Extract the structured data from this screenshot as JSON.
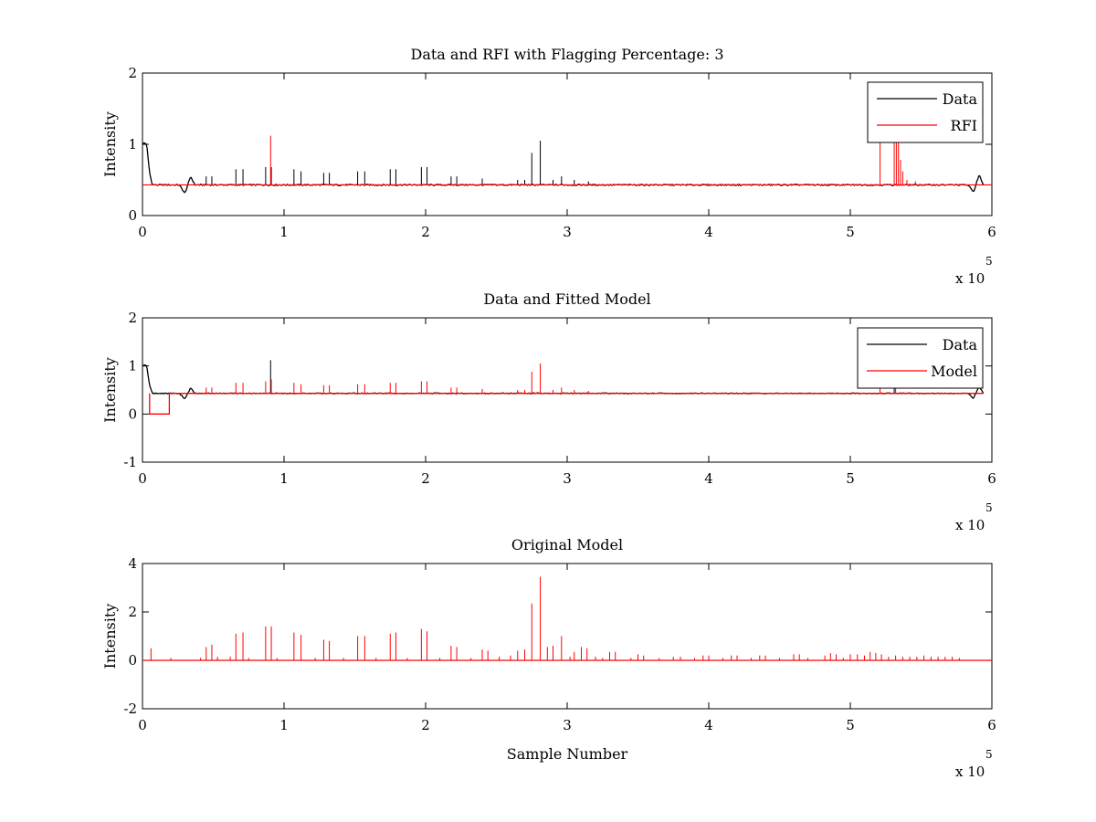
{
  "chart_data": [
    {
      "type": "line",
      "title": "Data and RFI with Flagging Percentage: 3",
      "xlabel": "",
      "ylabel": "Intensity",
      "xlim": [
        0,
        600000
      ],
      "ylim": [
        0,
        2
      ],
      "xticks": [
        "0",
        "1",
        "2",
        "3",
        "4",
        "5",
        "6"
      ],
      "yticks": [
        "0",
        "1",
        "2"
      ],
      "x_multiplier": "x 10",
      "x_multiplier_exp": "5",
      "legend": {
        "placement": "top-right",
        "entries": [
          {
            "name": "Data",
            "color": "#000000"
          },
          {
            "name": "RFI",
            "color": "#ff0000"
          }
        ]
      },
      "baseline": 0.43,
      "series": [
        {
          "name": "Data",
          "color": "#000000",
          "features": [
            {
              "x": 0,
              "y": 1.0
            },
            {
              "x": 1500,
              "y": 1.02
            },
            {
              "x": 3000,
              "y": 1.0
            },
            {
              "x": 5000,
              "y": 0.6
            },
            {
              "x": 7000,
              "y": 0.43
            },
            {
              "x": 26000,
              "y": 0.43
            },
            {
              "x": 30000,
              "y": 0.31
            },
            {
              "x": 34000,
              "y": 0.55
            },
            {
              "x": 37000,
              "y": 0.43
            },
            {
              "x": 583000,
              "y": 0.43
            },
            {
              "x": 587000,
              "y": 0.33
            },
            {
              "x": 591000,
              "y": 0.57
            },
            {
              "x": 594000,
              "y": 0.43
            }
          ],
          "spikes": [
            {
              "x": 45000,
              "y": 0.55
            },
            {
              "x": 49000,
              "y": 0.55
            },
            {
              "x": 66000,
              "y": 0.65
            },
            {
              "x": 71000,
              "y": 0.65
            },
            {
              "x": 87000,
              "y": 0.68
            },
            {
              "x": 91000,
              "y": 0.68
            },
            {
              "x": 107000,
              "y": 0.65
            },
            {
              "x": 112000,
              "y": 0.62
            },
            {
              "x": 128000,
              "y": 0.6
            },
            {
              "x": 132000,
              "y": 0.6
            },
            {
              "x": 152000,
              "y": 0.62
            },
            {
              "x": 157000,
              "y": 0.62
            },
            {
              "x": 175000,
              "y": 0.65
            },
            {
              "x": 179000,
              "y": 0.65
            },
            {
              "x": 197000,
              "y": 0.68
            },
            {
              "x": 201000,
              "y": 0.68
            },
            {
              "x": 218000,
              "y": 0.55
            },
            {
              "x": 222000,
              "y": 0.55
            },
            {
              "x": 240000,
              "y": 0.52
            },
            {
              "x": 265000,
              "y": 0.5
            },
            {
              "x": 270000,
              "y": 0.5
            },
            {
              "x": 275000,
              "y": 0.88
            },
            {
              "x": 281000,
              "y": 1.05
            },
            {
              "x": 290000,
              "y": 0.5
            },
            {
              "x": 296000,
              "y": 0.55
            },
            {
              "x": 305000,
              "y": 0.5
            },
            {
              "x": 315000,
              "y": 0.48
            }
          ]
        },
        {
          "name": "RFI",
          "color": "#ff0000",
          "spikes": [
            {
              "x": 90500,
              "y": 1.12
            },
            {
              "x": 521000,
              "y": 1.1
            },
            {
              "x": 531000,
              "y": 1.1
            },
            {
              "x": 532500,
              "y": 1.1
            },
            {
              "x": 534000,
              "y": 1.1
            },
            {
              "x": 535500,
              "y": 0.78
            },
            {
              "x": 537000,
              "y": 0.62
            },
            {
              "x": 540000,
              "y": 0.5
            },
            {
              "x": 546000,
              "y": 0.48
            }
          ]
        }
      ]
    },
    {
      "type": "line",
      "title": "Data and Fitted Model",
      "xlabel": "",
      "ylabel": "Intensity",
      "xlim": [
        0,
        600000
      ],
      "ylim": [
        -1,
        2
      ],
      "xticks": [
        "0",
        "1",
        "2",
        "3",
        "4",
        "5",
        "6"
      ],
      "yticks": [
        "-1",
        "0",
        "1",
        "2"
      ],
      "x_multiplier": "x 10",
      "x_multiplier_exp": "5",
      "legend": {
        "placement": "top-right",
        "entries": [
          {
            "name": "Data",
            "color": "#000000"
          },
          {
            "name": "Model",
            "color": "#ff0000"
          }
        ]
      },
      "baseline": 0.43,
      "series": [
        {
          "name": "Data",
          "color": "#000000",
          "features": [
            {
              "x": 0,
              "y": 1.0
            },
            {
              "x": 1500,
              "y": 1.02
            },
            {
              "x": 3000,
              "y": 1.0
            },
            {
              "x": 5000,
              "y": 0.6
            },
            {
              "x": 7000,
              "y": 0.43
            },
            {
              "x": 26000,
              "y": 0.43
            },
            {
              "x": 30000,
              "y": 0.31
            },
            {
              "x": 34000,
              "y": 0.55
            },
            {
              "x": 37000,
              "y": 0.43
            },
            {
              "x": 583000,
              "y": 0.43
            },
            {
              "x": 587000,
              "y": 0.33
            },
            {
              "x": 591000,
              "y": 0.57
            },
            {
              "x": 594000,
              "y": 0.43
            }
          ],
          "spikes": [
            {
              "x": 90500,
              "y": 1.12
            },
            {
              "x": 531000,
              "y": 0.62
            }
          ]
        },
        {
          "name": "Model",
          "color": "#ff0000",
          "features": [
            {
              "x": 5000,
              "y": 0.43
            },
            {
              "x": 5000,
              "y": 0.0
            },
            {
              "x": 19000,
              "y": 0.0
            },
            {
              "x": 19000,
              "y": 0.43
            },
            {
              "x": 594000,
              "y": 0.43
            }
          ],
          "spikes": [
            {
              "x": 45000,
              "y": 0.55
            },
            {
              "x": 49000,
              "y": 0.55
            },
            {
              "x": 66000,
              "y": 0.65
            },
            {
              "x": 71000,
              "y": 0.65
            },
            {
              "x": 87000,
              "y": 0.68
            },
            {
              "x": 91000,
              "y": 0.72
            },
            {
              "x": 107000,
              "y": 0.65
            },
            {
              "x": 112000,
              "y": 0.62
            },
            {
              "x": 128000,
              "y": 0.6
            },
            {
              "x": 132000,
              "y": 0.6
            },
            {
              "x": 152000,
              "y": 0.62
            },
            {
              "x": 157000,
              "y": 0.62
            },
            {
              "x": 175000,
              "y": 0.65
            },
            {
              "x": 179000,
              "y": 0.65
            },
            {
              "x": 197000,
              "y": 0.68
            },
            {
              "x": 201000,
              "y": 0.68
            },
            {
              "x": 218000,
              "y": 0.55
            },
            {
              "x": 222000,
              "y": 0.55
            },
            {
              "x": 240000,
              "y": 0.52
            },
            {
              "x": 265000,
              "y": 0.5
            },
            {
              "x": 270000,
              "y": 0.5
            },
            {
              "x": 275000,
              "y": 0.88
            },
            {
              "x": 281000,
              "y": 1.05
            },
            {
              "x": 290000,
              "y": 0.5
            },
            {
              "x": 296000,
              "y": 0.55
            },
            {
              "x": 305000,
              "y": 0.5
            },
            {
              "x": 315000,
              "y": 0.48
            },
            {
              "x": 521000,
              "y": 0.55
            },
            {
              "x": 532000,
              "y": 0.58
            }
          ]
        }
      ]
    },
    {
      "type": "line",
      "title": "Original Model",
      "xlabel": "Sample Number",
      "ylabel": "Intensity",
      "xlim": [
        0,
        600000
      ],
      "ylim": [
        -2,
        4
      ],
      "xticks": [
        "0",
        "1",
        "2",
        "3",
        "4",
        "5",
        "6"
      ],
      "yticks": [
        "-2",
        "0",
        "2",
        "4"
      ],
      "x_multiplier": "x 10",
      "x_multiplier_exp": "5",
      "baseline": 0.0,
      "series": [
        {
          "name": "",
          "color": "#ff0000",
          "spikes": [
            {
              "x": 6000,
              "y": 0.5
            },
            {
              "x": 20000,
              "y": 0.1
            },
            {
              "x": 41000,
              "y": 0.1
            },
            {
              "x": 45000,
              "y": 0.55
            },
            {
              "x": 49000,
              "y": 0.65
            },
            {
              "x": 53000,
              "y": 0.15
            },
            {
              "x": 62000,
              "y": 0.15
            },
            {
              "x": 66000,
              "y": 1.1
            },
            {
              "x": 71000,
              "y": 1.15
            },
            {
              "x": 75000,
              "y": 0.1
            },
            {
              "x": 87000,
              "y": 1.4
            },
            {
              "x": 91000,
              "y": 1.4
            },
            {
              "x": 95000,
              "y": 0.1
            },
            {
              "x": 107000,
              "y": 1.15
            },
            {
              "x": 112000,
              "y": 1.05
            },
            {
              "x": 122000,
              "y": 0.1
            },
            {
              "x": 128000,
              "y": 0.85
            },
            {
              "x": 132000,
              "y": 0.8
            },
            {
              "x": 142000,
              "y": 0.1
            },
            {
              "x": 152000,
              "y": 1.0
            },
            {
              "x": 157000,
              "y": 1.0
            },
            {
              "x": 165000,
              "y": 0.1
            },
            {
              "x": 175000,
              "y": 1.1
            },
            {
              "x": 179000,
              "y": 1.15
            },
            {
              "x": 187000,
              "y": 0.1
            },
            {
              "x": 197000,
              "y": 1.3
            },
            {
              "x": 201000,
              "y": 1.2
            },
            {
              "x": 210000,
              "y": 0.1
            },
            {
              "x": 218000,
              "y": 0.6
            },
            {
              "x": 222000,
              "y": 0.55
            },
            {
              "x": 232000,
              "y": 0.1
            },
            {
              "x": 240000,
              "y": 0.45
            },
            {
              "x": 244000,
              "y": 0.4
            },
            {
              "x": 252000,
              "y": 0.15
            },
            {
              "x": 260000,
              "y": 0.2
            },
            {
              "x": 265000,
              "y": 0.4
            },
            {
              "x": 270000,
              "y": 0.45
            },
            {
              "x": 275000,
              "y": 2.35
            },
            {
              "x": 281000,
              "y": 3.45
            },
            {
              "x": 286000,
              "y": 0.55
            },
            {
              "x": 290000,
              "y": 0.6
            },
            {
              "x": 296000,
              "y": 1.0
            },
            {
              "x": 302000,
              "y": 0.15
            },
            {
              "x": 305000,
              "y": 0.35
            },
            {
              "x": 310000,
              "y": 0.55
            },
            {
              "x": 314000,
              "y": 0.5
            },
            {
              "x": 320000,
              "y": 0.15
            },
            {
              "x": 325000,
              "y": 0.1
            },
            {
              "x": 330000,
              "y": 0.35
            },
            {
              "x": 334000,
              "y": 0.35
            },
            {
              "x": 345000,
              "y": 0.1
            },
            {
              "x": 350000,
              "y": 0.25
            },
            {
              "x": 354000,
              "y": 0.2
            },
            {
              "x": 365000,
              "y": 0.1
            },
            {
              "x": 375000,
              "y": 0.15
            },
            {
              "x": 380000,
              "y": 0.15
            },
            {
              "x": 390000,
              "y": 0.1
            },
            {
              "x": 396000,
              "y": 0.2
            },
            {
              "x": 400000,
              "y": 0.2
            },
            {
              "x": 410000,
              "y": 0.1
            },
            {
              "x": 416000,
              "y": 0.2
            },
            {
              "x": 420000,
              "y": 0.2
            },
            {
              "x": 430000,
              "y": 0.1
            },
            {
              "x": 436000,
              "y": 0.2
            },
            {
              "x": 440000,
              "y": 0.2
            },
            {
              "x": 450000,
              "y": 0.1
            },
            {
              "x": 460000,
              "y": 0.25
            },
            {
              "x": 464000,
              "y": 0.25
            },
            {
              "x": 470000,
              "y": 0.1
            },
            {
              "x": 482000,
              "y": 0.2
            },
            {
              "x": 486000,
              "y": 0.3
            },
            {
              "x": 490000,
              "y": 0.25
            },
            {
              "x": 495000,
              "y": 0.1
            },
            {
              "x": 500000,
              "y": 0.25
            },
            {
              "x": 505000,
              "y": 0.25
            },
            {
              "x": 510000,
              "y": 0.2
            },
            {
              "x": 514000,
              "y": 0.35
            },
            {
              "x": 518000,
              "y": 0.3
            },
            {
              "x": 522000,
              "y": 0.25
            },
            {
              "x": 527000,
              "y": 0.15
            },
            {
              "x": 532000,
              "y": 0.2
            },
            {
              "x": 537000,
              "y": 0.15
            },
            {
              "x": 542000,
              "y": 0.15
            },
            {
              "x": 547000,
              "y": 0.15
            },
            {
              "x": 552000,
              "y": 0.2
            },
            {
              "x": 557000,
              "y": 0.15
            },
            {
              "x": 562000,
              "y": 0.15
            },
            {
              "x": 567000,
              "y": 0.15
            },
            {
              "x": 572000,
              "y": 0.15
            },
            {
              "x": 577000,
              "y": 0.1
            }
          ]
        }
      ]
    }
  ]
}
